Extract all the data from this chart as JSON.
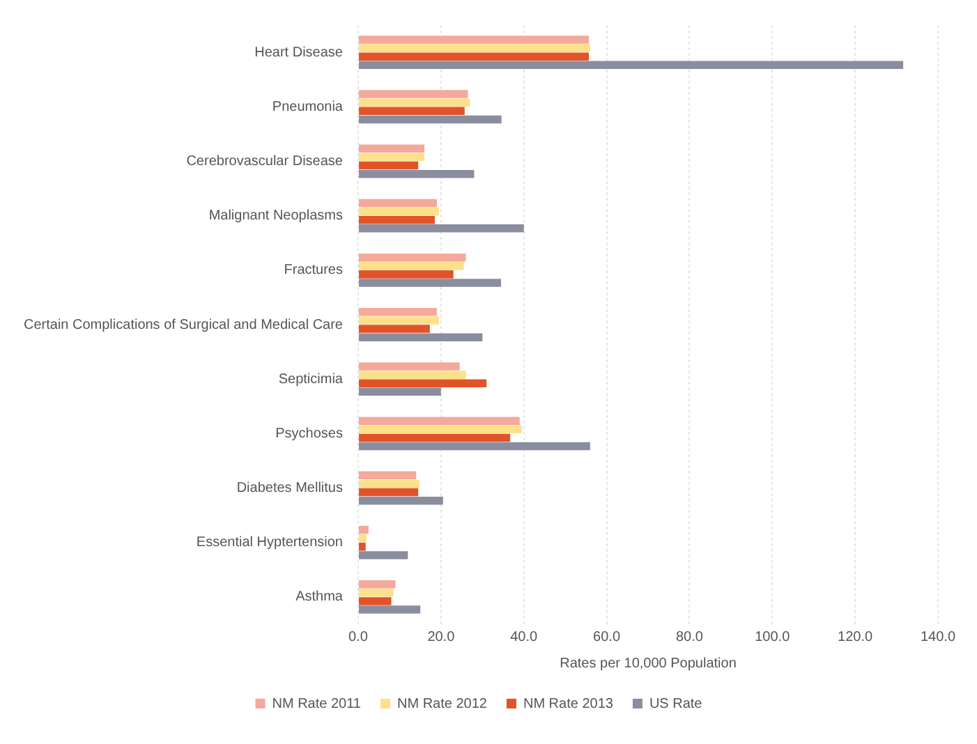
{
  "chart_data": {
    "type": "bar",
    "orientation": "horizontal",
    "xlabel": "Rates per 10,000 Population",
    "categories": [
      "Heart Disease",
      "Pneumonia",
      "Cerebrovascular Disease",
      "Malignant Neoplasms",
      "Fractures",
      "Certain Complications of Surgical and Medical Care",
      "Septicimia",
      "Psychoses",
      "Diabetes Mellitus",
      "Essential Hyptertension",
      "Asthma"
    ],
    "series": [
      {
        "name": "NM Rate 2011",
        "color": "#f4a99a",
        "values": [
          55.7,
          26.5,
          16,
          19,
          26,
          19,
          24.5,
          39,
          14,
          2.5,
          9
        ]
      },
      {
        "name": "NM Rate 2012",
        "color": "#fde08a",
        "values": [
          56,
          27,
          16,
          19.5,
          25.5,
          19.5,
          26,
          39.5,
          14.8,
          2,
          8.5
        ]
      },
      {
        "name": "NM Rate 2013",
        "color": "#e2532a",
        "values": [
          55.7,
          25.7,
          14.5,
          18.5,
          23,
          17.3,
          31,
          36.7,
          14.5,
          1.8,
          8
        ]
      },
      {
        "name": "US Rate",
        "color": "#8a8d9e",
        "values": [
          131.6,
          34.6,
          28,
          40,
          34.5,
          30,
          20,
          56,
          20.5,
          12,
          15
        ]
      }
    ],
    "xlim": [
      0,
      140
    ],
    "xticks": [
      {
        "value": 0,
        "label": "0.0"
      },
      {
        "value": 20,
        "label": "20.0"
      },
      {
        "value": 40,
        "label": "40.0"
      },
      {
        "value": 60,
        "label": "60.0"
      },
      {
        "value": 80,
        "label": "80.0"
      },
      {
        "value": 100,
        "label": "100.0"
      },
      {
        "value": 120,
        "label": "120.0"
      },
      {
        "value": 140,
        "label": "140.0"
      }
    ],
    "grid": "x",
    "legend": "bottom"
  }
}
